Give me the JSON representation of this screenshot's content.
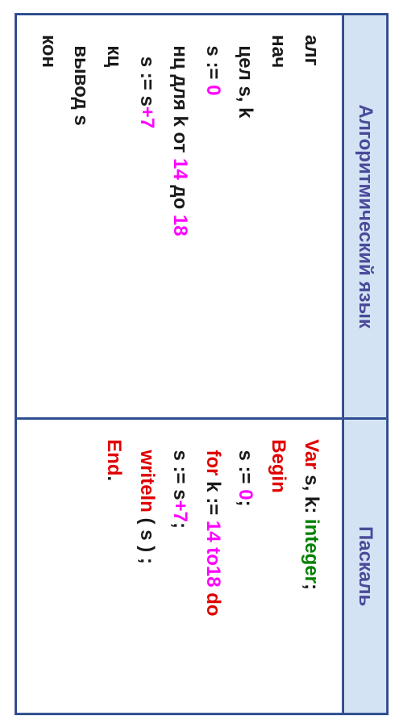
{
  "headers": {
    "left": "Алгоритмический язык",
    "right": "Паскаль"
  },
  "colors": {
    "border": "#2a4b8d",
    "header_bg": "#d4e3f4",
    "header_text": "#4a4a9a",
    "black": "#1a1a1a",
    "magenta": "#ff00ff",
    "red": "#e00000",
    "green": "#008000"
  },
  "left_code": [
    [
      {
        "t": "алг",
        "c": "black"
      }
    ],
    [
      {
        "t": "нач",
        "c": "black"
      }
    ],
    [
      {
        "t": "  цел s, k",
        "c": "black"
      }
    ],
    [
      {
        "t": "  s := ",
        "c": "black"
      },
      {
        "t": "0",
        "c": "magenta"
      }
    ],
    [
      {
        "t": "  нц для k от ",
        "c": "black"
      },
      {
        "t": "14",
        "c": "magenta"
      },
      {
        "t": " до ",
        "c": "black"
      },
      {
        "t": "18",
        "c": "magenta"
      }
    ],
    [
      {
        "t": "    s := s",
        "c": "black"
      },
      {
        "t": "+7",
        "c": "magenta"
      }
    ],
    [
      {
        "t": "  кц",
        "c": "black"
      }
    ],
    [
      {
        "t": "  вывод s",
        "c": "black"
      }
    ],
    [
      {
        "t": "кон",
        "c": "black"
      }
    ]
  ],
  "right_code": [
    [
      {
        "t": "Var",
        "c": "red"
      },
      {
        "t": " s, k: ",
        "c": "black"
      },
      {
        "t": "integer",
        "c": "green"
      },
      {
        "t": ";",
        "c": "black"
      }
    ],
    [
      {
        "t": "Begin",
        "c": "red"
      }
    ],
    [
      {
        "t": "  s := ",
        "c": "black"
      },
      {
        "t": "0",
        "c": "magenta"
      },
      {
        "t": ";",
        "c": "black"
      }
    ],
    [
      {
        "t": "  for",
        "c": "red"
      },
      {
        "t": " k := ",
        "c": "black"
      },
      {
        "t": "14 to18",
        "c": "magenta"
      },
      {
        "t": " do",
        "c": "red"
      }
    ],
    [
      {
        "t": "  s := s",
        "c": "black"
      },
      {
        "t": "+7",
        "c": "magenta"
      },
      {
        "t": ";",
        "c": "black"
      }
    ],
    [
      {
        "t": "  writeln",
        "c": "red"
      },
      {
        "t": " ( s ) ;",
        "c": "black"
      }
    ],
    [
      {
        "t": "End",
        "c": "red"
      },
      {
        "t": ".",
        "c": "black"
      }
    ]
  ]
}
